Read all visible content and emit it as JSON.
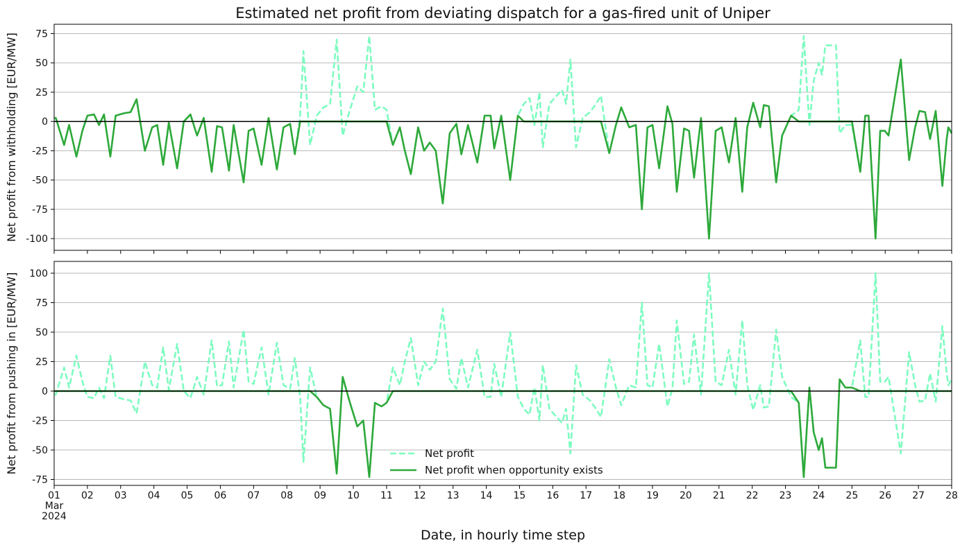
{
  "chart_data": [
    {
      "type": "line",
      "title": "Estimated net profit from deviating dispatch for a gas-fired unit of Uniper",
      "ylabel": "Net profit from withholding [EUR/MW]",
      "x": [
        0,
        0.05,
        0.3,
        0.45,
        0.67,
        0.85,
        1,
        1.2,
        1.35,
        1.5,
        1.69,
        1.85,
        2.1,
        2.3,
        2.48,
        2.73,
        2.95,
        3.1,
        3.28,
        3.45,
        3.7,
        3.9,
        4.1,
        4.3,
        4.5,
        4.74,
        4.9,
        5.05,
        5.26,
        5.4,
        5.7,
        5.85,
        6,
        6.24,
        6.45,
        6.7,
        6.9,
        7.1,
        7.24,
        7.4,
        7.5,
        7.7,
        7.9,
        8.1,
        8.3,
        8.5,
        8.68,
        8.9,
        9.12,
        9.3,
        9.48,
        9.65,
        9.85,
        10,
        10.19,
        10.4,
        10.55,
        10.73,
        10.95,
        11.13,
        11.3,
        11.48,
        11.69,
        11.9,
        12.1,
        12.25,
        12.45,
        12.73,
        12.95,
        13.13,
        13.24,
        13.45,
        13.72,
        13.95,
        14.13,
        14.3,
        14.45,
        14.6,
        14.7,
        14.9,
        15.05,
        15.28,
        15.4,
        15.53,
        15.7,
        15.9,
        16.12,
        16.3,
        16.45,
        16.7,
        16.9,
        17.06,
        17.3,
        17.5,
        17.68,
        17.85,
        18,
        18.2,
        18.45,
        18.6,
        18.73,
        18.95,
        19.1,
        19.25,
        19.46,
        19.7,
        19.9,
        20.08,
        20.3,
        20.5,
        20.7,
        20.85,
        21.03,
        21.24,
        21.35,
        21.5,
        21.72,
        21.9,
        22.17,
        22.4,
        22.55,
        22.72,
        22.85,
        23,
        23.1,
        23.2,
        23.52,
        23.63,
        23.8,
        24,
        24.25,
        24.4,
        24.5,
        24.71,
        24.85,
        24.99,
        25.1,
        25.47,
        25.72,
        25.9,
        26.03,
        26.2,
        26.35,
        26.52,
        26.72,
        26.85,
        26.9,
        27
      ],
      "series": [
        {
          "color": "#7dfcc0",
          "dashed": true,
          "values": [
            3,
            3,
            -20,
            -3,
            -30,
            -8,
            5,
            6,
            -3,
            6,
            -30,
            5,
            7,
            8,
            19,
            -25,
            -5,
            -3,
            -37,
            -1,
            -40,
            0,
            6,
            -12,
            3,
            -43,
            -4,
            -5,
            -42,
            -3,
            -52,
            -8,
            -6,
            -37,
            3,
            -41,
            -5,
            -2,
            -28,
            5,
            60,
            -20,
            5,
            12,
            15,
            70,
            -12,
            10,
            30,
            25,
            73,
            10,
            13,
            10,
            -20,
            -5,
            -25,
            -45,
            -5,
            -25,
            -18,
            -25,
            -70,
            -10,
            -2,
            -28,
            -3,
            -35,
            5,
            5,
            -23,
            5,
            -50,
            5,
            15,
            20,
            -3,
            25,
            -22,
            15,
            20,
            27,
            15,
            53,
            -22,
            3,
            8,
            15,
            22,
            -27,
            -3,
            12,
            -5,
            -3,
            -75,
            -5,
            -3,
            -40,
            13,
            -2,
            -60,
            -6,
            -8,
            -48,
            3,
            -100,
            -8,
            -5,
            -35,
            3,
            -60,
            -5,
            16,
            -5,
            14,
            13,
            -52,
            -12,
            5,
            10,
            73,
            -3,
            35,
            50,
            40,
            65,
            65,
            -10,
            -3,
            -3,
            -43,
            5,
            5,
            -100,
            -8,
            -8,
            -12,
            53,
            -33,
            -5,
            9,
            8,
            -15,
            9,
            -55,
            -15,
            -5,
            -10
          ]
        },
        {
          "color": "#2fa83a",
          "dashed": false,
          "values": [
            3,
            3,
            -20,
            -3,
            -30,
            -8,
            5,
            6,
            -3,
            6,
            -30,
            5,
            7,
            8,
            19,
            -25,
            -5,
            -3,
            -37,
            -1,
            -40,
            0,
            6,
            -12,
            3,
            -43,
            -4,
            -5,
            -42,
            -3,
            -52,
            -8,
            -6,
            -37,
            3,
            -41,
            -5,
            -2,
            -28,
            0,
            0,
            0,
            0,
            0,
            0,
            0,
            0,
            0,
            0,
            0,
            0,
            0,
            0,
            0,
            -20,
            -5,
            -25,
            -45,
            -5,
            -25,
            -18,
            -25,
            -70,
            -10,
            -2,
            -28,
            -3,
            -35,
            5,
            5,
            -23,
            5,
            -50,
            5,
            0,
            0,
            0,
            0,
            0,
            0,
            0,
            0,
            0,
            0,
            0,
            0,
            0,
            0,
            0,
            -27,
            -3,
            12,
            -5,
            -3,
            -75,
            -5,
            -3,
            -40,
            13,
            -2,
            -60,
            -6,
            -8,
            -48,
            3,
            -100,
            -8,
            -5,
            -35,
            3,
            -60,
            -5,
            16,
            -5,
            14,
            13,
            -52,
            -12,
            5,
            0,
            0,
            0,
            0,
            0,
            0,
            0,
            0,
            0,
            0,
            0,
            -43,
            5,
            5,
            -100,
            -8,
            -8,
            -12,
            53,
            -33,
            -5,
            9,
            8,
            -15,
            9,
            -55,
            -15,
            -5,
            -10
          ]
        }
      ],
      "xlim": [
        0,
        27
      ],
      "xticks": [
        0,
        1,
        2,
        3,
        4,
        5,
        6,
        7,
        8,
        9,
        10,
        11,
        12,
        13,
        14,
        15,
        16,
        17,
        18,
        19,
        20,
        21,
        22,
        23,
        24,
        25,
        26,
        27
      ],
      "ylim": [
        -110,
        83
      ],
      "yticks": [
        -100,
        -75,
        -50,
        -25,
        0,
        25,
        50,
        75
      ],
      "grid": "y",
      "hline": 0
    },
    {
      "type": "line",
      "ylabel": "Net profit from pushing in [EUR/MW]",
      "xlabel": "Date, in hourly time step",
      "x": [
        0,
        0.05,
        0.3,
        0.45,
        0.67,
        0.85,
        1,
        1.2,
        1.35,
        1.5,
        1.69,
        1.85,
        2.1,
        2.3,
        2.48,
        2.73,
        2.95,
        3.1,
        3.28,
        3.45,
        3.7,
        3.9,
        4.1,
        4.3,
        4.5,
        4.74,
        4.9,
        5.05,
        5.26,
        5.4,
        5.7,
        5.85,
        6,
        6.24,
        6.45,
        6.7,
        6.9,
        7.1,
        7.24,
        7.4,
        7.5,
        7.7,
        7.9,
        8.1,
        8.3,
        8.5,
        8.68,
        8.9,
        9.12,
        9.3,
        9.48,
        9.65,
        9.85,
        10,
        10.19,
        10.4,
        10.55,
        10.73,
        10.95,
        11.13,
        11.3,
        11.48,
        11.69,
        11.9,
        12.1,
        12.25,
        12.45,
        12.73,
        12.95,
        13.13,
        13.24,
        13.45,
        13.72,
        13.95,
        14.13,
        14.3,
        14.45,
        14.6,
        14.7,
        14.9,
        15.05,
        15.28,
        15.4,
        15.53,
        15.7,
        15.9,
        16.12,
        16.3,
        16.45,
        16.7,
        16.9,
        17.06,
        17.3,
        17.5,
        17.68,
        17.85,
        18,
        18.2,
        18.45,
        18.6,
        18.73,
        18.95,
        19.1,
        19.25,
        19.46,
        19.7,
        19.9,
        20.08,
        20.3,
        20.5,
        20.7,
        20.85,
        21.03,
        21.24,
        21.35,
        21.5,
        21.72,
        21.9,
        22.17,
        22.4,
        22.55,
        22.72,
        22.85,
        23,
        23.1,
        23.2,
        23.52,
        23.63,
        23.8,
        24,
        24.25,
        24.4,
        24.5,
        24.71,
        24.85,
        24.99,
        25.1,
        25.47,
        25.72,
        25.9,
        26.03,
        26.2,
        26.35,
        26.52,
        26.72,
        26.85,
        26.9,
        27
      ],
      "series": [
        {
          "name": "Net profit",
          "color": "#7dfcc0",
          "dashed": true,
          "values": [
            -3,
            -3,
            20,
            3,
            30,
            8,
            -5,
            -6,
            3,
            -6,
            30,
            -5,
            -7,
            -8,
            -19,
            25,
            5,
            3,
            37,
            1,
            40,
            0,
            -6,
            12,
            -3,
            43,
            4,
            5,
            42,
            3,
            52,
            8,
            6,
            37,
            -3,
            41,
            5,
            2,
            28,
            -5,
            -60,
            20,
            -5,
            -12,
            -15,
            -70,
            12,
            -10,
            -30,
            -25,
            -73,
            -10,
            -13,
            -10,
            20,
            5,
            25,
            45,
            5,
            25,
            18,
            25,
            70,
            10,
            2,
            28,
            3,
            35,
            -5,
            -5,
            23,
            -5,
            50,
            -5,
            -15,
            -20,
            3,
            -25,
            22,
            -15,
            -20,
            -27,
            -15,
            -53,
            22,
            -3,
            -8,
            -15,
            -22,
            27,
            3,
            -12,
            5,
            3,
            75,
            5,
            3,
            40,
            -13,
            2,
            60,
            6,
            8,
            48,
            -3,
            100,
            8,
            5,
            35,
            -3,
            60,
            5,
            -16,
            5,
            -14,
            -13,
            52,
            12,
            -5,
            -10,
            -73,
            3,
            -35,
            -50,
            -40,
            -65,
            -65,
            10,
            3,
            3,
            43,
            -5,
            -5,
            100,
            8,
            8,
            12,
            -53,
            33,
            5,
            -9,
            -8,
            15,
            -9,
            55,
            15,
            5,
            10
          ]
        },
        {
          "name": "Net profit when opportunity exists",
          "color": "#2fa83a",
          "dashed": false,
          "values": [
            0,
            0,
            0,
            0,
            0,
            0,
            0,
            0,
            0,
            0,
            0,
            0,
            0,
            0,
            0,
            0,
            0,
            0,
            0,
            0,
            0,
            0,
            0,
            0,
            0,
            0,
            0,
            0,
            0,
            0,
            0,
            0,
            0,
            0,
            0,
            0,
            0,
            0,
            0,
            0,
            0,
            0,
            -5,
            -12,
            -15,
            -70,
            12,
            -10,
            -30,
            -25,
            -73,
            -10,
            -13,
            -10,
            0,
            0,
            0,
            0,
            0,
            0,
            0,
            0,
            0,
            0,
            0,
            0,
            0,
            0,
            0,
            0,
            0,
            0,
            0,
            0,
            0,
            0,
            0,
            0,
            0,
            0,
            0,
            0,
            0,
            0,
            0,
            0,
            0,
            0,
            0,
            0,
            0,
            0,
            0,
            0,
            0,
            0,
            0,
            0,
            0,
            0,
            0,
            0,
            0,
            0,
            0,
            0,
            0,
            0,
            0,
            0,
            0,
            0,
            0,
            0,
            0,
            0,
            0,
            0,
            0,
            -10,
            -73,
            3,
            -35,
            -50,
            -40,
            -65,
            -65,
            10,
            3,
            3,
            0,
            0,
            0,
            0,
            0,
            0,
            0,
            0,
            0,
            0,
            0,
            0,
            0,
            0,
            0,
            0,
            0,
            0
          ]
        }
      ],
      "xlim": [
        0,
        27
      ],
      "xticks": [
        {
          "value": 0,
          "label": "01\nMar\n2024"
        },
        {
          "value": 1,
          "label": "02"
        },
        {
          "value": 2,
          "label": "03"
        },
        {
          "value": 3,
          "label": "04"
        },
        {
          "value": 4,
          "label": "05"
        },
        {
          "value": 5,
          "label": "06"
        },
        {
          "value": 6,
          "label": "07"
        },
        {
          "value": 7,
          "label": "08"
        },
        {
          "value": 8,
          "label": "09"
        },
        {
          "value": 9,
          "label": "10"
        },
        {
          "value": 10,
          "label": "11"
        },
        {
          "value": 11,
          "label": "12"
        },
        {
          "value": 12,
          "label": "13"
        },
        {
          "value": 13,
          "label": "14"
        },
        {
          "value": 14,
          "label": "15"
        },
        {
          "value": 15,
          "label": "16"
        },
        {
          "value": 16,
          "label": "17"
        },
        {
          "value": 17,
          "label": "18"
        },
        {
          "value": 18,
          "label": "19"
        },
        {
          "value": 19,
          "label": "20"
        },
        {
          "value": 20,
          "label": "21"
        },
        {
          "value": 21,
          "label": "22"
        },
        {
          "value": 22,
          "label": "23"
        },
        {
          "value": 23,
          "label": "24"
        },
        {
          "value": 24,
          "label": "25"
        },
        {
          "value": 25,
          "label": "26"
        },
        {
          "value": 26,
          "label": "27"
        },
        {
          "value": 27,
          "label": "28"
        }
      ],
      "ylim": [
        -80,
        110
      ],
      "yticks": [
        -75,
        -50,
        -25,
        0,
        25,
        50,
        75,
        100
      ],
      "grid": "y",
      "hline": 0,
      "legend": "lower center"
    }
  ]
}
